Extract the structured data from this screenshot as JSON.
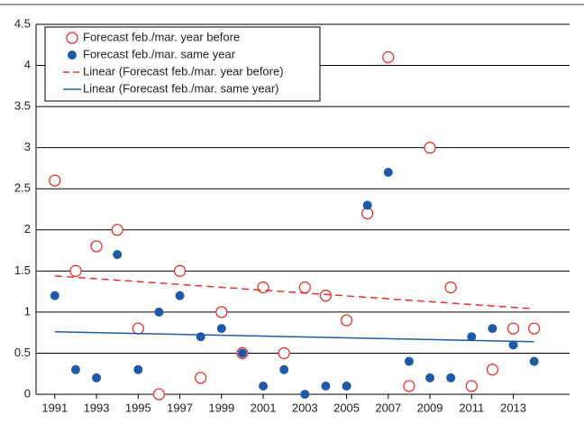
{
  "chart_data": {
    "type": "scatter",
    "series": [
      {
        "name": "Forecast feb./mar. year before",
        "color": "#e8312f",
        "marker": "open",
        "x": [
          1991,
          1992,
          1993,
          1994,
          1995,
          1996,
          1997,
          1998,
          1999,
          2000,
          2001,
          2002,
          2003,
          2004,
          2005,
          2006,
          2007,
          2008,
          2009,
          2010,
          2011,
          2012,
          2013,
          2014
        ],
        "values": [
          2.6,
          1.5,
          1.8,
          2.0,
          0.8,
          0.0,
          1.5,
          0.2,
          1.0,
          0.5,
          1.3,
          0.5,
          1.3,
          1.2,
          0.9,
          2.2,
          4.1,
          0.1,
          3.0,
          1.3,
          0.1,
          0.3,
          0.8,
          0.8
        ]
      },
      {
        "name": "Forecast feb./mar. same year",
        "color": "#1f5aa6",
        "marker": "filled",
        "x": [
          1991,
          1992,
          1993,
          1994,
          1995,
          1996,
          1997,
          1998,
          1999,
          2000,
          2001,
          2002,
          2003,
          2004,
          2005,
          2006,
          2007,
          2008,
          2009,
          2010,
          2011,
          2012,
          2013,
          2014
        ],
        "values": [
          1.2,
          0.3,
          0.2,
          1.7,
          0.3,
          1.0,
          1.2,
          0.7,
          0.8,
          0.5,
          0.1,
          0.3,
          0.0,
          0.1,
          0.1,
          2.3,
          2.7,
          0.4,
          0.2,
          0.2,
          0.7,
          0.8,
          0.6,
          0.4
        ]
      },
      {
        "name": "Linear (Forecast feb./mar. year before)",
        "color": "#e8312f",
        "marker": "dashed-line",
        "x": [
          1991,
          2014
        ],
        "values": [
          1.44,
          1.04
        ]
      },
      {
        "name": "Linear (Forecast feb./mar. same year)",
        "color": "#1f5aa6",
        "marker": "solid-line",
        "x": [
          1991,
          2014
        ],
        "values": [
          0.76,
          0.64
        ]
      }
    ],
    "xlim": [
      1990.1,
      2015.7
    ],
    "xticks": [
      1991,
      1993,
      1995,
      1997,
      1999,
      2001,
      2003,
      2005,
      2007,
      2009,
      2011,
      2013
    ],
    "ylim": [
      0,
      4.5
    ],
    "yticks": [
      0,
      0.5,
      1,
      1.5,
      2,
      2.5,
      3,
      3.5,
      4,
      4.5
    ],
    "grid": true,
    "legend": "top-left"
  }
}
